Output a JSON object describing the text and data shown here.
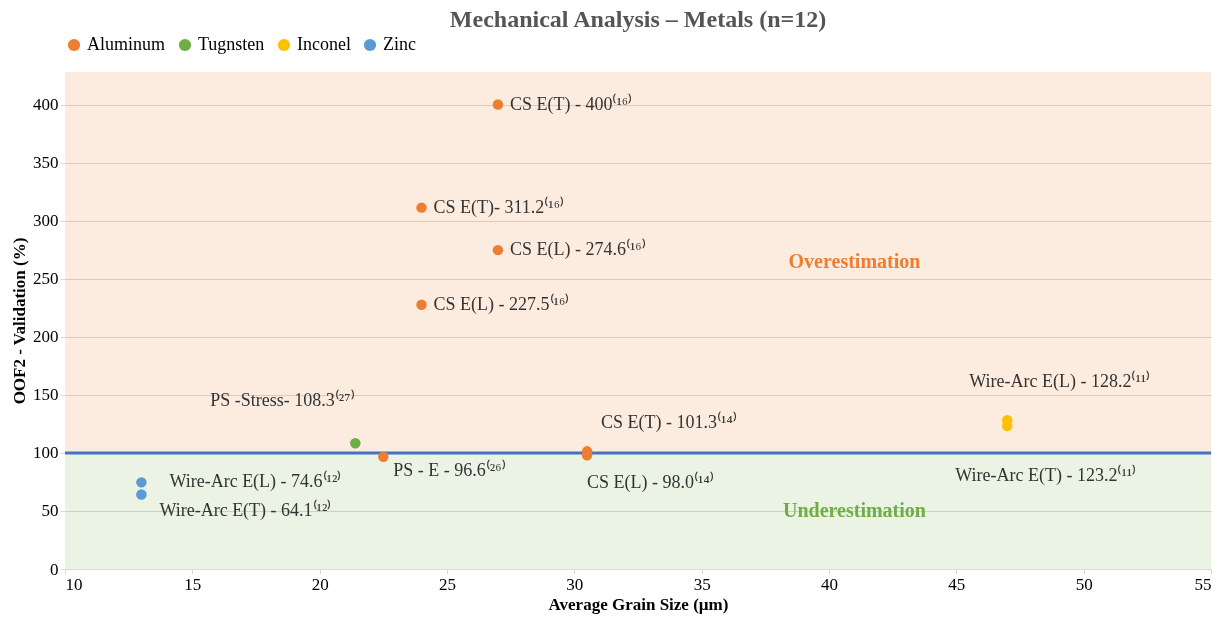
{
  "chart_data": {
    "type": "scatter",
    "title": "Mechanical Analysis – Metals (n=12)",
    "xlabel": "Average Grain Size (µm)",
    "ylabel": "OOF2 - Validation (%)",
    "series": [
      {
        "name": "Aluminum",
        "color": "#ed7d31",
        "x": [
          27,
          24,
          27,
          24,
          30.5,
          30.5,
          22.5
        ],
        "values": [
          400,
          311.2,
          274.6,
          227.5,
          101.3,
          98.0,
          96.6
        ]
      },
      {
        "name": "Tugnsten",
        "color": "#70ad47",
        "x": [
          21.4
        ],
        "values": [
          108.3
        ]
      },
      {
        "name": "Inconel",
        "color": "#ffc000",
        "x": [
          47,
          47
        ],
        "values": [
          128.2,
          123.2
        ]
      },
      {
        "name": "Zinc",
        "color": "#5b9bd5",
        "x": [
          13,
          13
        ],
        "values": [
          74.6,
          64.1
        ]
      }
    ],
    "annotations": [
      {
        "text": "CS E(T) - 400⁽¹⁶⁾",
        "x": 27,
        "y": 400
      },
      {
        "text": "CS E(T)- 311.2⁽¹⁶⁾",
        "x": 24,
        "y": 311.2
      },
      {
        "text": "CS  E(L) - 274.6⁽¹⁶⁾",
        "x": 27,
        "y": 274.6
      },
      {
        "text": "CS E(L) - 227.5⁽¹⁶⁾",
        "x": 24,
        "y": 227.5
      },
      {
        "text": "CS E(T) - 101.3⁽¹⁴⁾",
        "x": 30.5,
        "y": 101.3
      },
      {
        "text": "CS E(L) - 98.0⁽¹⁴⁾",
        "x": 30.5,
        "y": 98.0
      },
      {
        "text": "PS - E - 96.6⁽²⁶⁾",
        "x": 22.5,
        "y": 96.6
      },
      {
        "text": "PS -Stress- 108.3⁽²⁷⁾",
        "x": 21.4,
        "y": 108.3
      },
      {
        "text": "Wire-Arc E(L) - 128.2⁽¹¹⁾",
        "x": 47,
        "y": 128.2
      },
      {
        "text": "Wire-Arc E(T) - 123.2⁽¹¹⁾",
        "x": 47,
        "y": 123.2
      },
      {
        "text": "Wire-Arc E(L) - 74.6⁽¹²⁾",
        "x": 13,
        "y": 74.6
      },
      {
        "text": "Wire-Arc E(T) - 64.1⁽¹²⁾",
        "x": 13,
        "y": 64.1
      }
    ],
    "ref_lines": [
      {
        "axis": "y",
        "value": 100,
        "color": "#4472c4"
      }
    ],
    "bands": [
      {
        "axis": "y",
        "from": 100,
        "to": 428,
        "label": "Overestimation",
        "color": "#ed7d31"
      },
      {
        "axis": "y",
        "from": 0,
        "to": 100,
        "label": "Underestimation",
        "color": "#70ad47"
      }
    ],
    "xlim": [
      10,
      55
    ],
    "xticks": [
      10,
      15,
      20,
      25,
      30,
      35,
      40,
      45,
      50,
      55
    ],
    "ylim": [
      0,
      428
    ],
    "yticks": [
      0,
      50,
      100,
      150,
      200,
      250,
      300,
      350,
      400
    ],
    "grid": "y",
    "legend": "top",
    "marker": "circle"
  }
}
